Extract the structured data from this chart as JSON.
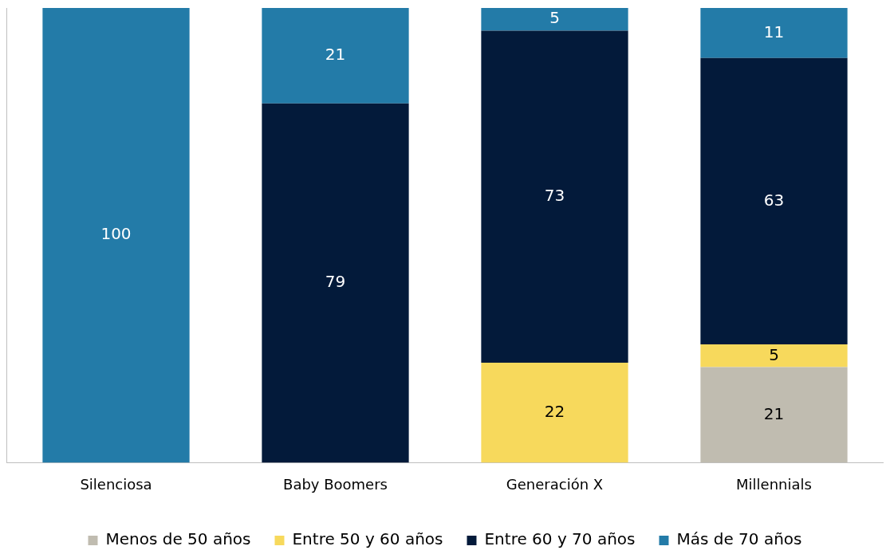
{
  "chart_data": {
    "type": "bar",
    "stacked": true,
    "categories": [
      "Silenciosa",
      "Baby Boomers",
      "Generación X",
      "Millennials"
    ],
    "series": [
      {
        "name": "Menos de 50 años",
        "color": "#c0bcb0",
        "values": [
          null,
          null,
          null,
          21
        ]
      },
      {
        "name": "Entre 50 y 60 años",
        "color": "#f7d95c",
        "values": [
          null,
          null,
          22,
          5
        ]
      },
      {
        "name": "Entre 60 y 70 años",
        "color": "#031a3a",
        "values": [
          null,
          79,
          73,
          63
        ]
      },
      {
        "name": "Más de 70 años",
        "color": "#237ba8",
        "values": [
          100,
          21,
          5,
          11
        ]
      }
    ],
    "ylim": [
      0,
      100
    ],
    "tick_labels": "x",
    "grid": false,
    "legend": "bottom",
    "data_labels": true
  }
}
